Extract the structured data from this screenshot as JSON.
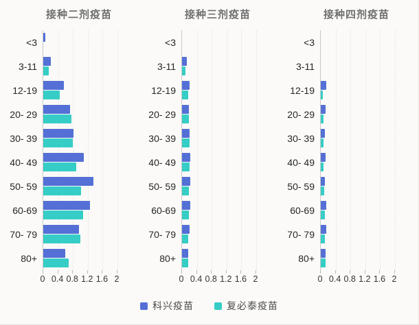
{
  "colors": {
    "sinovac": "#5470d6",
    "biontech": "#36cdc6",
    "title_gray": "#6f6f6f",
    "background": "#fbfaf8"
  },
  "legend": {
    "position": "bottom"
  },
  "chart_data": [
    {
      "type": "bar",
      "orientation": "horizontal",
      "title": "接种二剂疫苗",
      "categories": [
        "<3",
        "3-11",
        "12-19",
        "20- 29",
        "30- 39",
        "40- 49",
        "50- 59",
        "60-69",
        "70- 79",
        "80+"
      ],
      "series": [
        {
          "name": "科兴疫苗",
          "color": "#5470d6",
          "values": [
            0.06,
            0.2,
            0.55,
            0.72,
            0.82,
            1.1,
            1.35,
            1.25,
            0.97,
            0.6
          ]
        },
        {
          "name": "复必泰疫苗",
          "color": "#36cdc6",
          "values": [
            0,
            0.15,
            0.45,
            0.76,
            0.8,
            0.88,
            1.02,
            1.08,
            1.0,
            0.68
          ]
        }
      ],
      "xlabel": "",
      "ylabel": "",
      "xlim": [
        0,
        2
      ],
      "xticks": [
        0,
        0.4,
        0.8,
        1.2,
        1.6,
        2
      ],
      "grid": true
    },
    {
      "type": "bar",
      "orientation": "horizontal",
      "title": "接种三剂疫苗",
      "categories": [
        "<3",
        "3-11",
        "12-19",
        "20- 29",
        "30- 39",
        "40- 49",
        "50- 59",
        "60-69",
        "70- 79",
        "80+"
      ],
      "series": [
        {
          "name": "科兴疫苗",
          "color": "#5470d6",
          "values": [
            0,
            0.13,
            0.2,
            0.18,
            0.2,
            0.22,
            0.22,
            0.22,
            0.2,
            0.16
          ]
        },
        {
          "name": "复必泰疫苗",
          "color": "#36cdc6",
          "values": [
            0,
            0.1,
            0.16,
            0.18,
            0.2,
            0.21,
            0.18,
            0.18,
            0.17,
            0.16
          ]
        }
      ],
      "xlabel": "",
      "ylabel": "",
      "xlim": [
        0,
        2
      ],
      "xticks": [
        0,
        0.4,
        0.8,
        1.2,
        1.6,
        2
      ],
      "grid": true
    },
    {
      "type": "bar",
      "orientation": "horizontal",
      "title": "接种四剂疫苗",
      "categories": [
        "<3",
        "3-11",
        "12-19",
        "20- 29",
        "30- 39",
        "40- 49",
        "50- 59",
        "60-69",
        "70- 79",
        "80+"
      ],
      "series": [
        {
          "name": "科兴疫苗",
          "color": "#5470d6",
          "values": [
            0,
            0,
            0.15,
            0.13,
            0.12,
            0.13,
            0.11,
            0.15,
            0.15,
            0.13
          ]
        },
        {
          "name": "复必泰疫苗",
          "color": "#36cdc6",
          "values": [
            0,
            0,
            0.05,
            0.08,
            0.07,
            0.08,
            0.09,
            0.12,
            0.12,
            0.13
          ]
        }
      ],
      "xlabel": "",
      "ylabel": "",
      "xlim": [
        0,
        2
      ],
      "xticks": [
        0,
        0.4,
        0.8,
        1.2,
        1.6,
        2
      ],
      "grid": true
    }
  ]
}
